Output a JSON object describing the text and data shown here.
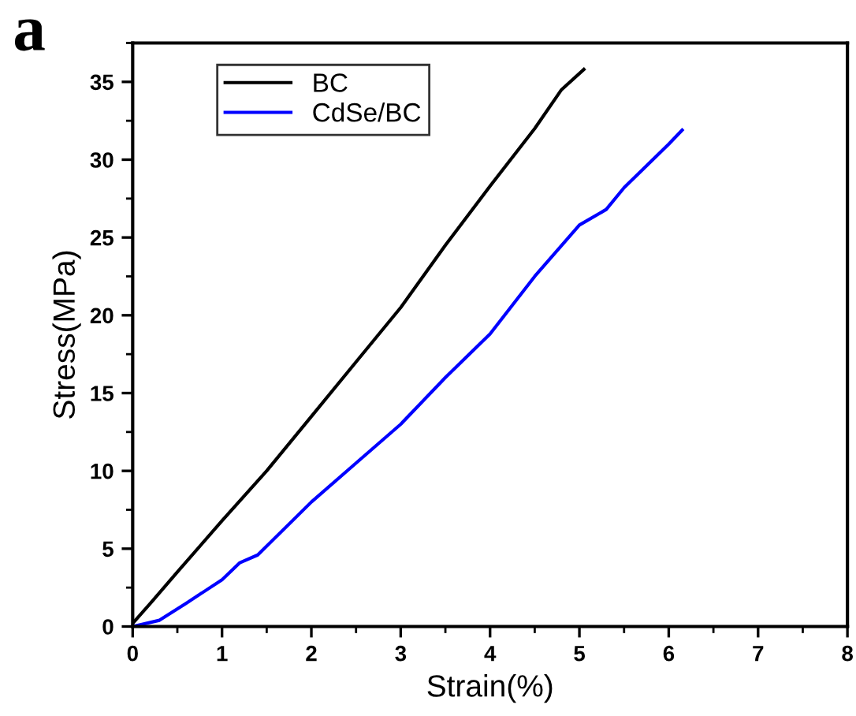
{
  "chart_data": {
    "type": "line",
    "xlabel": "Strain(%)",
    "ylabel": "Stress(MPa)",
    "annotations": [
      "a"
    ],
    "xlim": [
      0,
      8
    ],
    "xticks": [
      0,
      1,
      2,
      3,
      4,
      5,
      6,
      7,
      8
    ],
    "ylim": [
      0,
      37.5
    ],
    "yticks": [
      0,
      5,
      10,
      15,
      20,
      25,
      30,
      35
    ],
    "grid": false,
    "legend": "top left",
    "marker": "none",
    "line_style": "solid",
    "series": [
      {
        "name": "BC",
        "color": "#000000",
        "x": [
          0,
          0.2,
          0.5,
          1,
          1.5,
          2,
          2.5,
          3,
          3.5,
          4,
          4.5,
          4.8,
          5.05
        ],
        "values": [
          0.2,
          1.5,
          3.5,
          6.8,
          10,
          13.5,
          17,
          20.5,
          24.5,
          28.3,
          32,
          34.5,
          35.8
        ]
      },
      {
        "name": "CdSe/BC",
        "color": "#0000ff",
        "x": [
          0,
          0.3,
          0.6,
          1,
          1.2,
          1.4,
          2,
          2.5,
          3,
          3.5,
          4,
          4.5,
          5,
          5.3,
          5.5,
          6,
          6.15
        ],
        "values": [
          0,
          0.4,
          1.5,
          3,
          4.1,
          4.6,
          8,
          10.5,
          13,
          16,
          18.8,
          22.5,
          25.8,
          26.8,
          28.2,
          31,
          31.9
        ]
      }
    ]
  }
}
